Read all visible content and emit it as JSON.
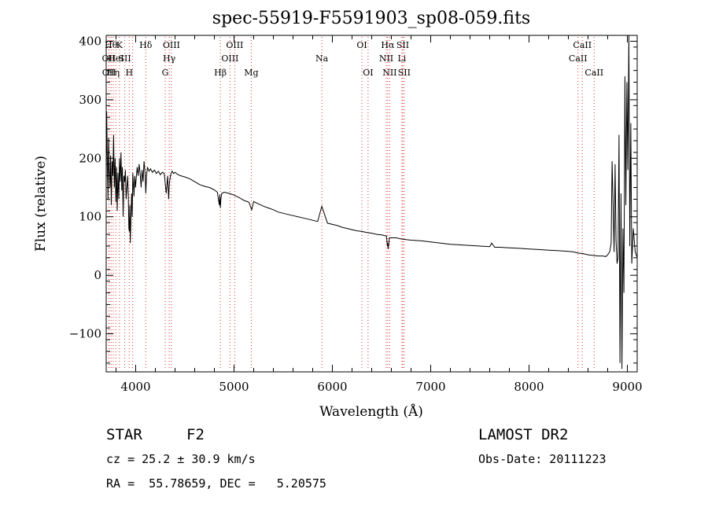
{
  "chart_data": {
    "type": "line",
    "title": "spec-55919-F5591903_sp08-059.fits",
    "xlabel": "Wavelength (Å)",
    "ylabel": "Flux (relative)",
    "xlim": [
      3700,
      9100
    ],
    "ylim": [
      -165,
      410
    ],
    "xticks": [
      4000,
      5000,
      6000,
      7000,
      8000,
      9000
    ],
    "yticks": [
      -100,
      0,
      100,
      200,
      300,
      400
    ],
    "grid": false,
    "legend": "none",
    "colors": {
      "spectrum": "#000000",
      "line_markers": "#e03030"
    },
    "series": [
      {
        "x": [
          3700,
          3705,
          3712,
          3718,
          3725,
          3730,
          3738,
          3745,
          3752,
          3760,
          3768,
          3775,
          3782,
          3790,
          3798,
          3805,
          3812,
          3820,
          3828,
          3835,
          3842,
          3850,
          3858,
          3865,
          3872,
          3880,
          3888,
          3895,
          3902,
          3910,
          3918,
          3925,
          3930,
          3935,
          3940,
          3945,
          3950,
          3958,
          3965,
          3970,
          3975,
          3982,
          3990,
          3998,
          4005,
          4015,
          4025,
          4035,
          4045,
          4055,
          4065,
          4075,
          4085,
          4095,
          4102,
          4110,
          4120,
          4135,
          4150,
          4170,
          4190,
          4210,
          4230,
          4250,
          4270,
          4290,
          4310,
          4325,
          4335,
          4340,
          4345,
          4355,
          4370,
          4385,
          4400,
          4430,
          4460,
          4500,
          4550,
          4600,
          4650,
          4700,
          4750,
          4800,
          4830,
          4850,
          4855,
          4861,
          4866,
          4875,
          4900,
          4950,
          5000,
          5050,
          5100,
          5150,
          5180,
          5200,
          5250,
          5300,
          5350,
          5400,
          5450,
          5500,
          5550,
          5600,
          5650,
          5700,
          5750,
          5800,
          5850,
          5893,
          5950,
          6000,
          6050,
          6100,
          6150,
          6200,
          6250,
          6300,
          6350,
          6400,
          6450,
          6500,
          6550,
          6560,
          6563,
          6567,
          6580,
          6650,
          6700,
          6750,
          6800,
          6900,
          7000,
          7100,
          7200,
          7300,
          7400,
          7500,
          7600,
          7620,
          7650,
          7700,
          7800,
          7900,
          8000,
          8100,
          8200,
          8300,
          8400,
          8450,
          8500,
          8550,
          8600,
          8650,
          8700,
          8750,
          8780,
          8800,
          8820,
          8835,
          8845,
          8855,
          8865,
          8875,
          8885,
          8895,
          8905,
          8915,
          8925,
          8935,
          8945,
          8955,
          8965,
          8975,
          8985,
          8995,
          9005,
          9015,
          9025,
          9035,
          9045,
          9060,
          9080,
          9100
        ],
        "y": [
          165,
          280,
          190,
          130,
          235,
          185,
          150,
          205,
          120,
          195,
          170,
          240,
          150,
          200,
          125,
          185,
          110,
          175,
          130,
          200,
          160,
          210,
          145,
          185,
          100,
          170,
          160,
          180,
          130,
          150,
          170,
          135,
          80,
          75,
          120,
          55,
          90,
          140,
          100,
          175,
          160,
          135,
          170,
          150,
          165,
          185,
          170,
          190,
          175,
          150,
          180,
          160,
          195,
          175,
          140,
          170,
          185,
          178,
          182,
          176,
          180,
          174,
          178,
          172,
          176,
          174,
          140,
          170,
          130,
          150,
          160,
          172,
          178,
          174,
          176,
          172,
          170,
          168,
          165,
          160,
          155,
          152,
          150,
          146,
          142,
          120,
          138,
          115,
          130,
          140,
          142,
          140,
          137,
          133,
          128,
          125,
          112,
          126,
          122,
          118,
          115,
          112,
          108,
          106,
          104,
          102,
          100,
          98,
          96,
          94,
          92,
          118,
          89,
          87,
          85,
          82,
          80,
          78,
          76,
          75,
          73,
          72,
          70,
          69,
          67,
          50,
          55,
          45,
          64,
          64,
          62,
          61,
          60,
          59,
          57,
          55,
          53,
          52,
          51,
          50,
          49,
          55,
          48,
          48,
          47,
          46,
          45,
          44,
          43,
          42,
          41,
          40,
          38,
          37,
          35,
          34,
          33,
          33,
          32,
          35,
          40,
          55,
          195,
          120,
          40,
          190,
          60,
          20,
          30,
          240,
          -150,
          140,
          -160,
          80,
          -30,
          340,
          120,
          330,
          180,
          410,
          50,
          260,
          20,
          80,
          40,
          30
        ]
      }
    ],
    "line_markers": [
      {
        "x": 3727,
        "label": "OII",
        "row": 2
      },
      {
        "x": 3729,
        "label": "OII",
        "row": 3
      },
      {
        "x": 3750,
        "label": "Hθ",
        "row": 1
      },
      {
        "x": 3771,
        "label": "Hη",
        "row": 3
      },
      {
        "x": 3798,
        "label": "HeI",
        "row": 2
      },
      {
        "x": 3835,
        "label": "K",
        "row": 1
      },
      {
        "x": 3889,
        "label": "SII",
        "row": 2
      },
      {
        "x": 3934,
        "label": "H",
        "row": 3
      },
      {
        "x": 3969,
        "label": "",
        "row": 0
      },
      {
        "x": 4102,
        "label": "Hδ",
        "row": 1
      },
      {
        "x": 4300,
        "label": "G",
        "row": 3
      },
      {
        "x": 4341,
        "label": "Hγ",
        "row": 2
      },
      {
        "x": 4363,
        "label": "OIII",
        "row": 1
      },
      {
        "x": 4861,
        "label": "Hβ",
        "row": 3
      },
      {
        "x": 4959,
        "label": "OIII",
        "row": 2
      },
      {
        "x": 5007,
        "label": "OIII",
        "row": 1
      },
      {
        "x": 5175,
        "label": "Mg",
        "row": 3
      },
      {
        "x": 5893,
        "label": "Na",
        "row": 2
      },
      {
        "x": 6300,
        "label": "OI",
        "row": 1
      },
      {
        "x": 6363,
        "label": "OI",
        "row": 3
      },
      {
        "x": 6548,
        "label": "NII",
        "row": 2
      },
      {
        "x": 6563,
        "label": "Hα",
        "row": 1
      },
      {
        "x": 6583,
        "label": "NII",
        "row": 3
      },
      {
        "x": 6707,
        "label": "Li",
        "row": 2
      },
      {
        "x": 6716,
        "label": "SII",
        "row": 1
      },
      {
        "x": 6731,
        "label": "SII",
        "row": 3
      },
      {
        "x": 8498,
        "label": "CaII",
        "row": 2
      },
      {
        "x": 8542,
        "label": "CaII",
        "row": 1
      },
      {
        "x": 8662,
        "label": "CaII",
        "row": 3
      }
    ]
  },
  "footer": {
    "object_class": "STAR",
    "subclass": "F2",
    "survey": "LAMOST DR2",
    "cz_line": "cz = 25.2 ± 30.9 km/s",
    "obs_date_line": "Obs-Date: 20111223",
    "coords_line": "RA =  55.78659, DEC =   5.20575"
  }
}
